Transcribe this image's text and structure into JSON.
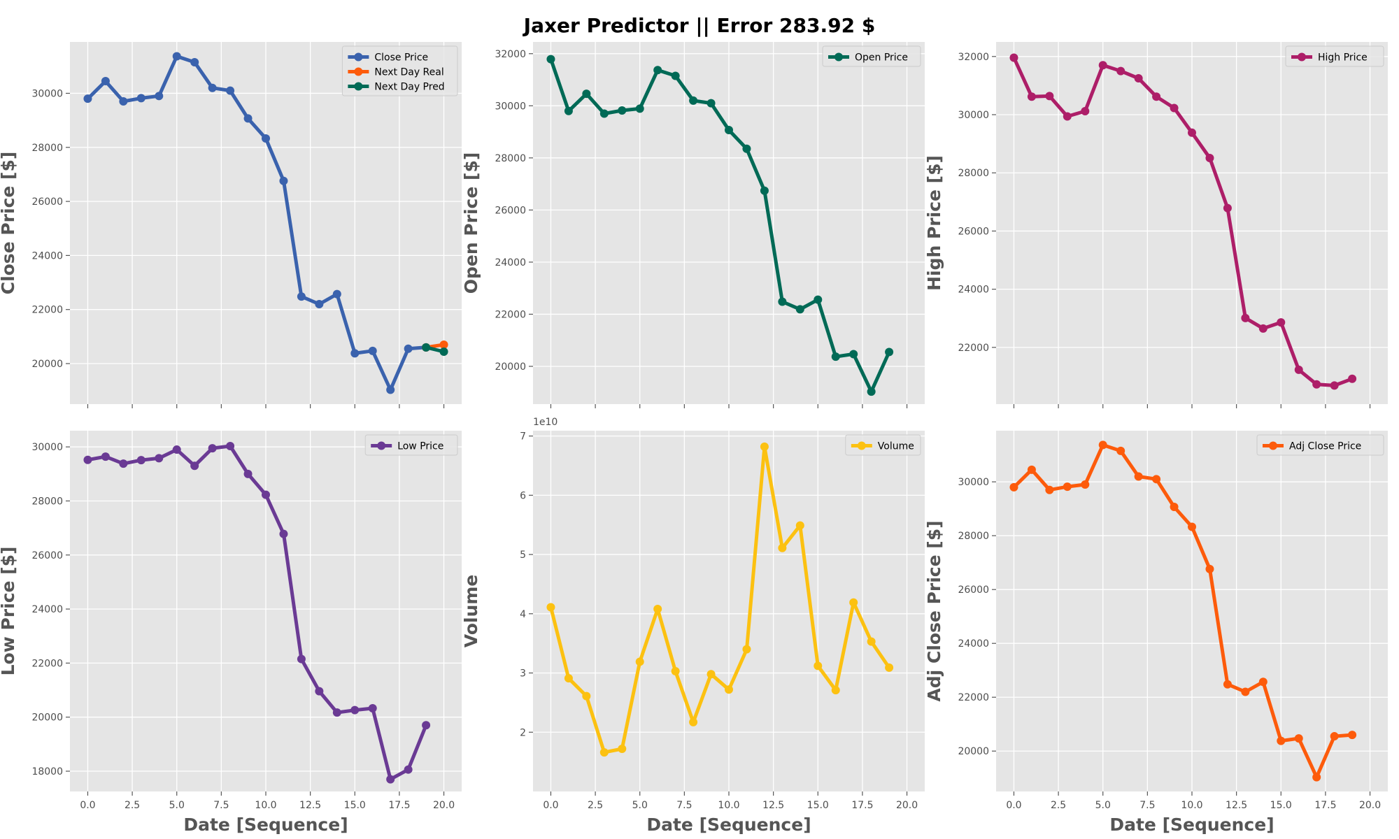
{
  "title": "Jaxer Predictor || Error 283.92 $",
  "colors": {
    "background": "#e5e5e5",
    "grid": "#ffffff",
    "close": "#3a62ad",
    "next_real": "#fd5b0b",
    "next_pred": "#006a56",
    "open": "#006a56",
    "high": "#ad1e68",
    "low": "#6a3a94",
    "volume": "#fcc111",
    "adj_close": "#fd5b0b"
  },
  "chart_data": [
    {
      "type": "line",
      "ylabel": "Close Price [$]",
      "xlabel": "",
      "xlim": [
        -1,
        21
      ],
      "ylim": [
        18500,
        31900
      ],
      "xticks": [
        0,
        2.5,
        5,
        7.5,
        10,
        12.5,
        15,
        17.5,
        20
      ],
      "xtick_labels": [],
      "yticks": [
        20000,
        22000,
        24000,
        26000,
        28000,
        30000
      ],
      "ytick_labels": [
        "20000",
        "22000",
        "24000",
        "26000",
        "28000",
        "30000"
      ],
      "grid": true,
      "legend": "top-right",
      "series": [
        {
          "name": "Close Price",
          "color": "#3a62ad",
          "x": [
            0,
            1,
            2,
            3,
            4,
            5,
            6,
            7,
            8,
            9,
            10,
            11,
            12,
            13,
            14,
            15,
            16,
            17,
            18,
            19
          ],
          "y": [
            29800,
            30450,
            29700,
            29820,
            29900,
            31370,
            31150,
            30200,
            30100,
            29070,
            28330,
            26760,
            22480,
            22200,
            22570,
            20380,
            20470,
            19030,
            20550,
            20600
          ]
        },
        {
          "name": "Next Day Real",
          "color": "#fd5b0b",
          "x": [
            19,
            20
          ],
          "y": [
            20600,
            20700
          ]
        },
        {
          "name": "Next Day Pred",
          "color": "#006a56",
          "x": [
            19,
            20
          ],
          "y": [
            20600,
            20440
          ]
        }
      ]
    },
    {
      "type": "line",
      "ylabel": "Open Price [$]",
      "xlabel": "",
      "xlim": [
        -1,
        21
      ],
      "ylim": [
        18550,
        32450
      ],
      "xticks": [
        0,
        2.5,
        5,
        7.5,
        10,
        12.5,
        15,
        17.5,
        20
      ],
      "xtick_labels": [],
      "yticks": [
        20000,
        22000,
        24000,
        26000,
        28000,
        30000,
        32000
      ],
      "ytick_labels": [
        "20000",
        "22000",
        "24000",
        "26000",
        "28000",
        "30000",
        "32000"
      ],
      "grid": true,
      "legend": "top-right",
      "series": [
        {
          "name": "Open Price",
          "color": "#006a56",
          "x": [
            0,
            1,
            2,
            3,
            4,
            5,
            6,
            7,
            8,
            9,
            10,
            11,
            12,
            13,
            14,
            15,
            16,
            17,
            18,
            19
          ],
          "y": [
            31790,
            29800,
            30460,
            29700,
            29820,
            29890,
            31370,
            31150,
            30200,
            30100,
            29070,
            28350,
            26740,
            22480,
            22190,
            22560,
            20370,
            20470,
            19030,
            20550
          ]
        }
      ]
    },
    {
      "type": "line",
      "ylabel": "High Price [$]",
      "xlabel": "",
      "xlim": [
        -1,
        21
      ],
      "ylim": [
        20050,
        32500
      ],
      "xticks": [
        0,
        2.5,
        5,
        7.5,
        10,
        12.5,
        15,
        17.5,
        20
      ],
      "xtick_labels": [],
      "yticks": [
        22000,
        24000,
        26000,
        28000,
        30000,
        32000
      ],
      "ytick_labels": [
        "22000",
        "24000",
        "26000",
        "28000",
        "30000",
        "32000"
      ],
      "grid": true,
      "legend": "top-right",
      "series": [
        {
          "name": "High Price",
          "color": "#ad1e68",
          "x": [
            0,
            1,
            2,
            3,
            4,
            5,
            6,
            7,
            8,
            9,
            10,
            11,
            12,
            13,
            14,
            15,
            16,
            17,
            18,
            19
          ],
          "y": [
            31960,
            30620,
            30640,
            29940,
            30120,
            31700,
            31500,
            31250,
            30620,
            30230,
            29380,
            28510,
            26790,
            23010,
            22650,
            22860,
            21230,
            20730,
            20690,
            20920
          ]
        }
      ]
    },
    {
      "type": "line",
      "ylabel": "Low Price [$]",
      "xlabel": "Date [Sequence]",
      "xlim": [
        -1,
        21
      ],
      "ylim": [
        17250,
        30600
      ],
      "xticks": [
        0,
        2.5,
        5,
        7.5,
        10,
        12.5,
        15,
        17.5,
        20
      ],
      "xtick_labels": [
        "0.0",
        "2.5",
        "5.0",
        "7.5",
        "10.0",
        "12.5",
        "15.0",
        "17.5",
        "20.0"
      ],
      "yticks": [
        18000,
        20000,
        22000,
        24000,
        26000,
        28000,
        30000
      ],
      "ytick_labels": [
        "18000",
        "20000",
        "22000",
        "24000",
        "26000",
        "28000",
        "30000"
      ],
      "grid": true,
      "legend": "top-right",
      "series": [
        {
          "name": "Low Price",
          "color": "#6a3a94",
          "x": [
            0,
            1,
            2,
            3,
            4,
            5,
            6,
            7,
            8,
            9,
            10,
            11,
            12,
            13,
            14,
            15,
            16,
            17,
            18,
            19
          ],
          "y": [
            29520,
            29640,
            29380,
            29510,
            29580,
            29900,
            29300,
            29950,
            30030,
            29000,
            28230,
            26780,
            22150,
            20960,
            20170,
            20260,
            20330,
            17700,
            18060,
            19700
          ]
        }
      ]
    },
    {
      "type": "line",
      "ylabel": "Volume",
      "xlabel": "Date [Sequence]",
      "offset_text": "1e10",
      "xlim": [
        -1,
        21
      ],
      "ylim": [
        1.0,
        7.09
      ],
      "xticks": [
        0,
        2.5,
        5,
        7.5,
        10,
        12.5,
        15,
        17.5,
        20
      ],
      "xtick_labels": [
        "0.0",
        "2.5",
        "5.0",
        "7.5",
        "10.0",
        "12.5",
        "15.0",
        "17.5",
        "20.0"
      ],
      "yticks": [
        2,
        3,
        4,
        5,
        6,
        7
      ],
      "ytick_labels": [
        "2",
        "3",
        "4",
        "5",
        "6",
        "7"
      ],
      "grid": true,
      "legend": "top-right",
      "series": [
        {
          "name": "Volume",
          "color": "#fcc111",
          "x": [
            0,
            1,
            2,
            3,
            4,
            5,
            6,
            7,
            8,
            9,
            10,
            11,
            12,
            13,
            14,
            15,
            16,
            17,
            18,
            19
          ],
          "y": [
            4.11,
            2.91,
            2.61,
            1.66,
            1.72,
            3.19,
            4.08,
            3.03,
            2.17,
            2.98,
            2.72,
            3.4,
            6.82,
            5.11,
            5.49,
            3.12,
            2.71,
            4.19,
            3.53,
            3.09
          ]
        }
      ]
    },
    {
      "type": "line",
      "ylabel": "Adj Close Price [$]",
      "xlabel": "Date [Sequence]",
      "xlim": [
        -1,
        21
      ],
      "ylim": [
        18500,
        31900
      ],
      "xticks": [
        0,
        2.5,
        5,
        7.5,
        10,
        12.5,
        15,
        17.5,
        20
      ],
      "xtick_labels": [
        "0.0",
        "2.5",
        "5.0",
        "7.5",
        "10.0",
        "12.5",
        "15.0",
        "17.5",
        "20.0"
      ],
      "yticks": [
        20000,
        22000,
        24000,
        26000,
        28000,
        30000
      ],
      "ytick_labels": [
        "20000",
        "22000",
        "24000",
        "26000",
        "28000",
        "30000"
      ],
      "grid": true,
      "legend": "top-right",
      "series": [
        {
          "name": "Adj Close Price",
          "color": "#fd5b0b",
          "x": [
            0,
            1,
            2,
            3,
            4,
            5,
            6,
            7,
            8,
            9,
            10,
            11,
            12,
            13,
            14,
            15,
            16,
            17,
            18,
            19
          ],
          "y": [
            29800,
            30450,
            29700,
            29820,
            29900,
            31370,
            31150,
            30200,
            30100,
            29070,
            28330,
            26760,
            22480,
            22200,
            22570,
            20380,
            20470,
            19030,
            20550,
            20600
          ]
        }
      ]
    }
  ]
}
